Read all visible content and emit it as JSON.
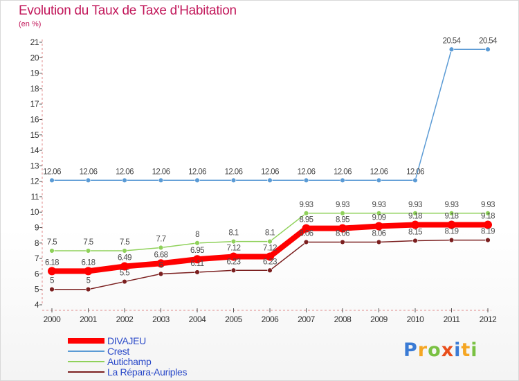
{
  "chart_data": {
    "type": "line",
    "title": "Evolution du Taux de Taxe d'Habitation",
    "ylabel": "(en %)",
    "x": [
      "2000",
      "2001",
      "2002",
      "2003",
      "2004",
      "2005",
      "2006",
      "2007",
      "2008",
      "2009",
      "2010",
      "2011",
      "2012"
    ],
    "ylim": [
      4,
      21
    ],
    "yticks": [
      "4",
      "5",
      "6",
      "7",
      "8",
      "9",
      "10",
      "11",
      "12",
      "13",
      "14",
      "15",
      "16",
      "17",
      "18",
      "19",
      "20",
      "21"
    ],
    "grid": false,
    "legend": "bottom-left",
    "series": [
      {
        "name": "DIVAJEU",
        "color": "#ff0000",
        "values": [
          6.18,
          6.18,
          6.49,
          6.68,
          6.95,
          7.12,
          7.12,
          8.95,
          8.95,
          9.09,
          9.18,
          9.18,
          9.18
        ],
        "labels": [
          "6.18",
          "6.18",
          "6.49",
          "6.68",
          "6.95",
          "7.12",
          "7.12",
          "8.95",
          "8.95",
          "9.09",
          "9.18",
          "9.18",
          "9.18"
        ]
      },
      {
        "name": "Crest",
        "color": "#5b9bd5",
        "values": [
          12.06,
          12.06,
          12.06,
          12.06,
          12.06,
          12.06,
          12.06,
          12.06,
          12.06,
          12.06,
          12.06,
          20.54,
          20.54
        ],
        "labels": [
          "12.06",
          "12.06",
          "12.06",
          "12.06",
          "12.06",
          "12.06",
          "12.06",
          "12.06",
          "12.06",
          "12.06",
          "12.06",
          "20.54",
          "20.54"
        ]
      },
      {
        "name": "Autichamp",
        "color": "#8fd15a",
        "values": [
          7.5,
          7.5,
          7.5,
          7.7,
          8,
          8.1,
          8.1,
          9.93,
          9.93,
          9.93,
          9.93,
          9.93,
          9.93
        ],
        "labels": [
          "7.5",
          "7.5",
          "7.5",
          "7.7",
          "8",
          "8.1",
          "8.1",
          "9.93",
          "9.93",
          "9.93",
          "9.93",
          "9.93",
          "9.93"
        ]
      },
      {
        "name": "La Répara-Auriples",
        "color": "#7b1f1f",
        "values": [
          5,
          5,
          5.5,
          6,
          6.11,
          6.23,
          6.23,
          8.06,
          8.06,
          8.06,
          8.15,
          8.19,
          8.19
        ],
        "labels": [
          "5",
          "5",
          "5.5",
          "6",
          "6.11",
          "6.23",
          "6.23",
          "8.06",
          "8.06",
          "8.06",
          "8.15",
          "8.19",
          "8.19"
        ]
      }
    ]
  },
  "brand": {
    "name": "Proxiti",
    "letters": [
      "P",
      "r",
      "o",
      "x",
      "i",
      "t",
      "i"
    ],
    "colors": [
      "#3a7bd5",
      "#f5a623",
      "#7ac143",
      "#e94e1b",
      "#3a7bd5",
      "#f5a623",
      "#7ac143"
    ]
  }
}
